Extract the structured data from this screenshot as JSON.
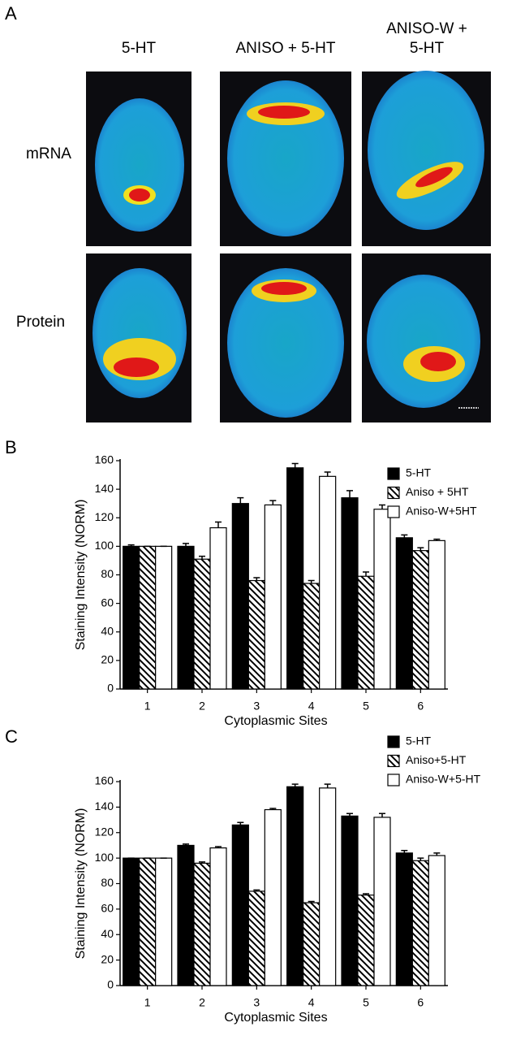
{
  "panel_a": {
    "panel_label": "A",
    "column_labels": [
      [
        "5-HT"
      ],
      [
        "ANISO + 5-HT"
      ],
      [
        "ANISO-W +",
        "5-HT"
      ]
    ],
    "row_labels": [
      "mRNA",
      "Protein"
    ]
  },
  "chart_data": [
    {
      "type": "bar",
      "panel_label": "B",
      "x_label": "Cytoplasmic Sites",
      "y_label": "Staining Intensity (NORM)",
      "categories": [
        "1",
        "2",
        "3",
        "4",
        "5",
        "6"
      ],
      "series": [
        {
          "name": "5-HT",
          "color": "#000000",
          "values": [
            100,
            100,
            130,
            155,
            134,
            106
          ],
          "errors": [
            1,
            2,
            4,
            3,
            5,
            2
          ]
        },
        {
          "name": "Aniso + 5HT",
          "color": "#000000",
          "hatch": true,
          "values": [
            100,
            91,
            76,
            74,
            79,
            97
          ],
          "errors": [
            0,
            2,
            2,
            2,
            3,
            2
          ]
        },
        {
          "name": "Aniso-W+5HT",
          "color": "#ffffff",
          "values": [
            100,
            113,
            129,
            149,
            126,
            104
          ],
          "errors": [
            0,
            4,
            3,
            3,
            3,
            1
          ]
        }
      ],
      "ylim": [
        0,
        160
      ],
      "yticks": [
        0,
        20,
        40,
        60,
        80,
        100,
        120,
        140,
        160
      ],
      "legend": "upper right"
    },
    {
      "type": "bar",
      "panel_label": "C",
      "x_label": "Cytoplasmic Sites",
      "y_label": "Staining Intensity (NORM)",
      "categories": [
        "1",
        "2",
        "3",
        "4",
        "5",
        "6"
      ],
      "series": [
        {
          "name": "5-HT",
          "color": "#000000",
          "values": [
            100,
            110,
            126,
            156,
            133,
            104
          ],
          "errors": [
            0,
            1,
            2,
            2,
            2,
            2
          ]
        },
        {
          "name": "Aniso+5-HT",
          "color": "#000000",
          "hatch": true,
          "values": [
            100,
            96,
            74,
            65,
            71,
            98
          ],
          "errors": [
            0,
            1,
            1,
            1,
            1,
            2
          ]
        },
        {
          "name": "Aniso-W+5-HT",
          "color": "#ffffff",
          "values": [
            100,
            108,
            138,
            155,
            132,
            102
          ],
          "errors": [
            0,
            1,
            1,
            3,
            3,
            2
          ]
        }
      ],
      "ylim": [
        0,
        160
      ],
      "yticks": [
        0,
        20,
        40,
        60,
        80,
        100,
        120,
        140,
        160
      ],
      "legend": "upper right"
    }
  ]
}
